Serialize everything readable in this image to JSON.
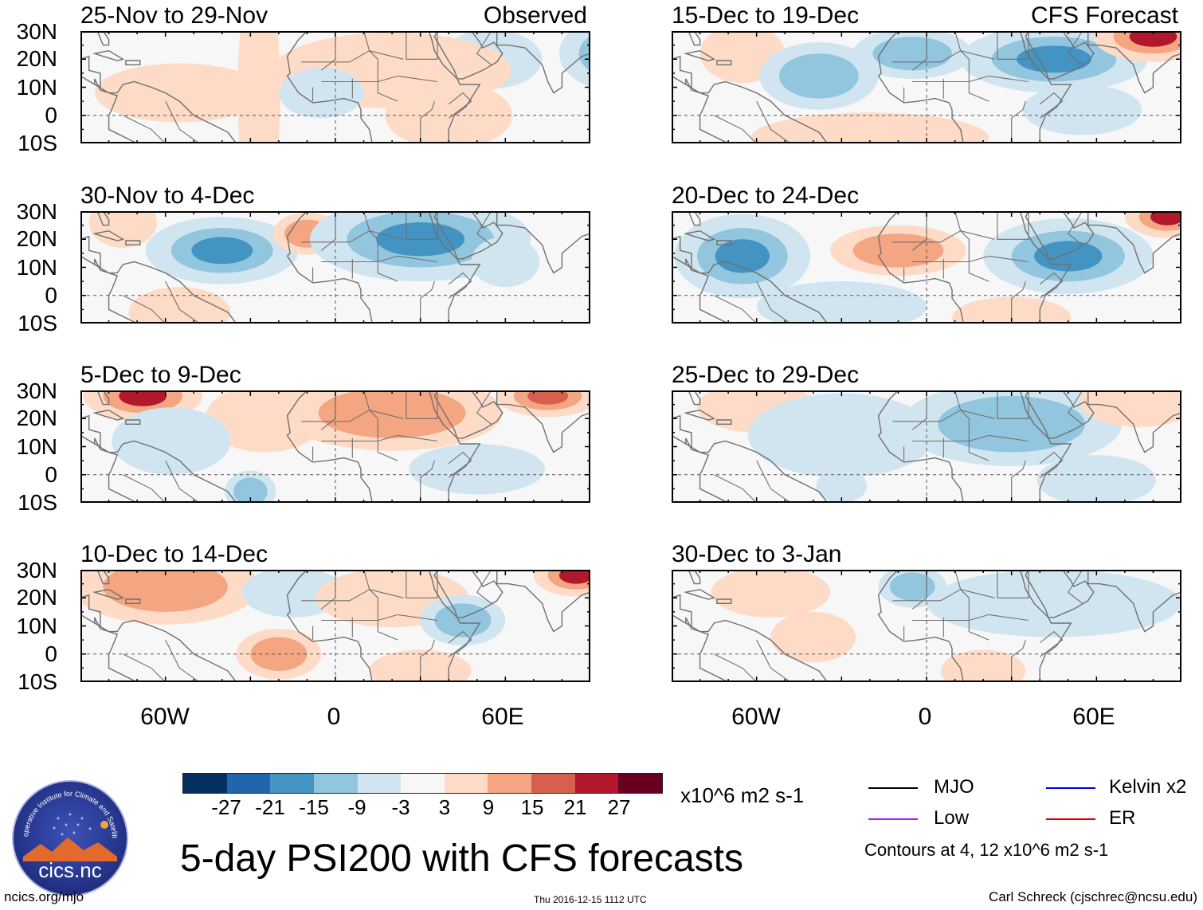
{
  "title": "5-day PSI200 with CFS forecasts",
  "panels": [
    {
      "date": "25-Nov to 29-Nov",
      "tag": "Observed",
      "anoms": [
        [
          -27,
          8,
          5,
          30,
          8
        ],
        [
          55,
          20,
          12,
          7,
          -8
        ],
        [
          100,
          22,
          14,
          9,
          -21
        ],
        [
          20,
          16,
          28,
          9,
          9
        ],
        [
          -55,
          8,
          20,
          7,
          6
        ],
        [
          -5,
          8,
          10,
          6,
          -5
        ],
        [
          40,
          0,
          15,
          8,
          5
        ]
      ]
    },
    {
      "date": "15-Dec to 19-Dec",
      "tag": "CFS Forecast",
      "anoms": [
        [
          -65,
          22,
          10,
          7,
          8
        ],
        [
          -38,
          14,
          14,
          8,
          -14
        ],
        [
          -5,
          22,
          14,
          6,
          -12
        ],
        [
          45,
          20,
          22,
          8,
          -16
        ],
        [
          80,
          28,
          14,
          6,
          22
        ],
        [
          -20,
          -8,
          28,
          6,
          8
        ],
        [
          55,
          2,
          14,
          6,
          -6
        ]
      ]
    },
    {
      "date": "30-Nov to 4-Dec",
      "tag": "",
      "anoms": [
        [
          -75,
          26,
          8,
          6,
          9
        ],
        [
          -40,
          16,
          18,
          8,
          -16
        ],
        [
          -10,
          22,
          8,
          5,
          12
        ],
        [
          30,
          20,
          26,
          10,
          -15
        ],
        [
          60,
          12,
          8,
          6,
          -8
        ],
        [
          -55,
          -6,
          12,
          6,
          8
        ]
      ]
    },
    {
      "date": "20-Dec to 24-Dec",
      "tag": "",
      "anoms": [
        [
          -65,
          14,
          16,
          10,
          -16
        ],
        [
          -10,
          16,
          16,
          6,
          10
        ],
        [
          50,
          14,
          20,
          9,
          -18
        ],
        [
          85,
          28,
          10,
          5,
          22
        ],
        [
          -30,
          -4,
          20,
          6,
          -5
        ],
        [
          30,
          -8,
          14,
          5,
          6
        ]
      ]
    },
    {
      "date": "5-Dec to 9-Dec",
      "tag": "",
      "anoms": [
        [
          -68,
          28,
          14,
          6,
          22
        ],
        [
          -25,
          20,
          14,
          8,
          6
        ],
        [
          20,
          22,
          26,
          9,
          12
        ],
        [
          75,
          28,
          12,
          5,
          16
        ],
        [
          -30,
          -6,
          6,
          5,
          -12
        ],
        [
          50,
          2,
          16,
          6,
          -5
        ],
        [
          -58,
          12,
          14,
          8,
          -5
        ]
      ]
    },
    {
      "date": "25-Dec to 29-Dec",
      "tag": "",
      "anoms": [
        [
          -60,
          24,
          14,
          6,
          8
        ],
        [
          -30,
          14,
          22,
          10,
          -5
        ],
        [
          30,
          18,
          26,
          10,
          -10
        ],
        [
          75,
          26,
          14,
          6,
          6
        ],
        [
          60,
          -2,
          14,
          6,
          -5
        ],
        [
          -30,
          -4,
          6,
          4,
          -8
        ]
      ]
    },
    {
      "date": "10-Dec to 14-Dec",
      "tag": "",
      "anoms": [
        [
          -60,
          24,
          22,
          9,
          14
        ],
        [
          -15,
          22,
          12,
          6,
          -8
        ],
        [
          20,
          20,
          18,
          7,
          9
        ],
        [
          45,
          12,
          10,
          6,
          -10
        ],
        [
          85,
          28,
          10,
          5,
          22
        ],
        [
          -20,
          0,
          10,
          6,
          12
        ],
        [
          30,
          -6,
          12,
          5,
          6
        ]
      ]
    },
    {
      "date": "30-Dec to 3-Jan",
      "tag": "",
      "anoms": [
        [
          -55,
          22,
          14,
          6,
          6
        ],
        [
          -5,
          24,
          8,
          5,
          -12
        ],
        [
          45,
          18,
          30,
          8,
          -6
        ],
        [
          -40,
          6,
          10,
          6,
          5
        ],
        [
          20,
          -6,
          10,
          5,
          4
        ]
      ]
    }
  ],
  "lat_labels": [
    "30N",
    "20N",
    "10N",
    "0",
    "10S"
  ],
  "lon_labels": [
    "60W",
    "0",
    "60E"
  ],
  "colorbar": {
    "colors": [
      "#053061",
      "#2166ac",
      "#4393c3",
      "#92c5de",
      "#d1e5f0",
      "#f7f7f7",
      "#fddbc7",
      "#f4a582",
      "#d6604d",
      "#b2182b",
      "#67001f"
    ],
    "labels": [
      "-27",
      "-21",
      "-15",
      "-9",
      "-3",
      "3",
      "9",
      "15",
      "21",
      "27"
    ],
    "units": "x10^6 m2 s-1"
  },
  "legend": [
    {
      "label": "MJO",
      "color": "#000000"
    },
    {
      "label": "Kelvin x2",
      "color": "#0000e0"
    },
    {
      "label": "Low",
      "color": "#a020f0"
    },
    {
      "label": "ER",
      "color": "#e00000"
    }
  ],
  "contour_note": "Contours at 4, 12 x10^6 m2 s-1",
  "logo_text": "cics.nc",
  "logo_ring_text": "Cooperative Institute for Climate and Satellites",
  "footer_left": "ncics.org/mjo",
  "timestamp": "Thu 2016-12-15 1112 UTC",
  "footer_right": "Carl Schreck (cjschrec@ncsu.edu)"
}
